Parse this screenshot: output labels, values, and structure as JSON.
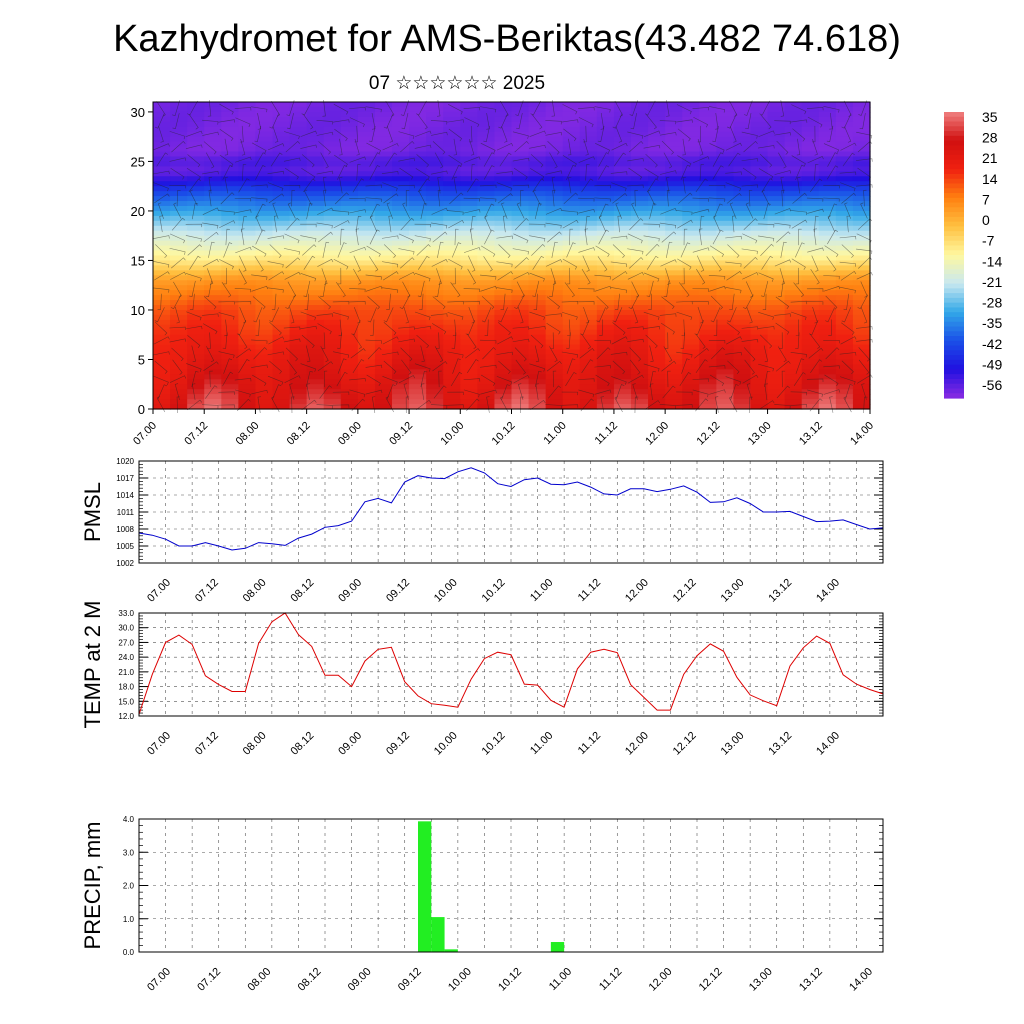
{
  "header": {
    "title": "Kazhydromet for AMS-Beriktas(43.482 74.618)",
    "subtitle": "07 ☆☆☆☆☆☆ 2025"
  },
  "time_labels": [
    "07.00",
    "07.12",
    "08.00",
    "08.12",
    "09.00",
    "09.12",
    "10.00",
    "10.12",
    "11.00",
    "11.12",
    "12.00",
    "12.12",
    "13.00",
    "13.12",
    "14.00"
  ],
  "chart_data": [
    {
      "type": "heatmap",
      "title": "",
      "y_ticks": [
        0,
        5,
        10,
        15,
        20,
        25,
        30
      ],
      "ylim": [
        0,
        31
      ],
      "x_labels": [
        "07.00",
        "07.12",
        "08.00",
        "08.12",
        "09.00",
        "09.12",
        "10.00",
        "10.12",
        "11.00",
        "11.12",
        "12.00",
        "12.12",
        "13.00",
        "13.12",
        "14.00"
      ],
      "overlay": "wind barbs",
      "colorbar": {
        "labels": [
          "35",
          "28",
          "21",
          "14",
          "7",
          "0",
          "-7",
          "-14",
          "-21",
          "-28",
          "-35",
          "-42",
          "-49",
          "-56"
        ],
        "range": [
          -60,
          38
        ],
        "colors": [
          "#8a2be2",
          "#2010e0",
          "#1a50e8",
          "#32a8e8",
          "#c8e8f0",
          "#fff8a0",
          "#ffc040",
          "#ff8010",
          "#f02010",
          "#d01010",
          "#f08080"
        ]
      },
      "temperature_profile": {
        "heights": [
          0,
          5,
          10,
          13,
          15,
          16.5,
          18,
          20,
          22,
          23,
          24,
          25,
          26,
          28,
          31
        ],
        "values": [
          30,
          22,
          14,
          5,
          -8,
          -15,
          -22,
          -32,
          -42,
          -50,
          -56,
          -54,
          -58,
          -58,
          -58
        ]
      }
    },
    {
      "type": "line",
      "ylabel": "PMSL",
      "ylim": [
        1002,
        1020
      ],
      "y_ticks": [
        "1020",
        "1017",
        "1014",
        "1011",
        "1008",
        "1005",
        "1002"
      ],
      "x_labels": [
        "07.00",
        "07.12",
        "08.00",
        "08.12",
        "09.00",
        "09.12",
        "10.00",
        "10.12",
        "11.00",
        "11.12",
        "12.00",
        "12.12",
        "13.00",
        "13.12",
        "14.00"
      ],
      "color": "#0000cc",
      "x": [
        0,
        3,
        6,
        9,
        12,
        15,
        18,
        21,
        24,
        27,
        30,
        33,
        36,
        39,
        42,
        45,
        48,
        51,
        54,
        57,
        60,
        63,
        66,
        69,
        72,
        75,
        78,
        81,
        84,
        87,
        90,
        93,
        96,
        99,
        102,
        105,
        108,
        111,
        114,
        117,
        120,
        123,
        126,
        129,
        132,
        135,
        138,
        141,
        144,
        147,
        150,
        153,
        156,
        159,
        162,
        165,
        168
      ],
      "values": [
        1007.3,
        1006.9,
        1006.2,
        1005.0,
        1005.0,
        1005.6,
        1005.0,
        1004.3,
        1004.6,
        1005.6,
        1005.4,
        1005.1,
        1006.4,
        1007.1,
        1008.3,
        1008.6,
        1009.4,
        1012.8,
        1013.4,
        1012.6,
        1016.3,
        1017.4,
        1017.0,
        1016.9,
        1018.1,
        1018.8,
        1017.9,
        1016.0,
        1015.5,
        1016.7,
        1017.0,
        1015.9,
        1015.8,
        1016.3,
        1015.4,
        1014.2,
        1014.0,
        1015.1,
        1015.1,
        1014.6,
        1015.0,
        1015.6,
        1014.5,
        1012.7,
        1012.8,
        1013.5,
        1012.5,
        1011.0,
        1011.0,
        1011.1,
        1010.2,
        1009.3,
        1009.4,
        1009.6,
        1008.8,
        1008.0,
        1008.2
      ]
    },
    {
      "type": "line",
      "ylabel": "TEMP at 2 M",
      "ylim": [
        12,
        33
      ],
      "y_ticks": [
        "33.0",
        "30.0",
        "27.0",
        "24.0",
        "21.0",
        "18.0",
        "15.0",
        "12.0"
      ],
      "x_labels": [
        "07.00",
        "07.12",
        "08.00",
        "08.12",
        "09.00",
        "09.12",
        "10.00",
        "10.12",
        "11.00",
        "11.12",
        "12.00",
        "12.12",
        "13.00",
        "13.12",
        "14.00"
      ],
      "color": "#dd0000",
      "x": [
        0,
        3,
        6,
        9,
        12,
        15,
        18,
        21,
        24,
        27,
        30,
        33,
        36,
        39,
        42,
        45,
        48,
        51,
        54,
        57,
        60,
        63,
        66,
        69,
        72,
        75,
        78,
        81,
        84,
        87,
        90,
        93,
        96,
        99,
        102,
        105,
        108,
        111,
        114,
        117,
        120,
        123,
        126,
        129,
        132,
        135,
        138,
        141,
        144,
        147,
        150,
        153,
        156,
        159,
        162,
        165,
        168
      ],
      "values": [
        12.3,
        20.5,
        27.0,
        28.5,
        26.6,
        20.2,
        18.4,
        17.0,
        17.0,
        26.8,
        31.2,
        33.0,
        28.6,
        26.2,
        20.3,
        20.3,
        18.0,
        23.2,
        25.6,
        26.0,
        19.0,
        16.1,
        14.5,
        14.2,
        13.8,
        19.5,
        23.7,
        25.0,
        24.5,
        18.5,
        18.3,
        15.2,
        13.8,
        21.6,
        25.0,
        25.6,
        24.9,
        18.4,
        15.8,
        13.2,
        13.2,
        20.5,
        24.3,
        26.7,
        25.2,
        19.9,
        16.3,
        15.1,
        14.1,
        22.2,
        25.9,
        28.3,
        26.8,
        20.4,
        18.5,
        17.4,
        16.5
      ]
    },
    {
      "type": "bar",
      "ylabel": "PRECIP, mm",
      "ylim": [
        0,
        4
      ],
      "y_ticks": [
        "4.0",
        "3.0",
        "2.0",
        "1.0",
        "0.0"
      ],
      "x_labels": [
        "07.00",
        "07.12",
        "08.00",
        "08.12",
        "09.00",
        "09.12",
        "10.00",
        "10.12",
        "11.00",
        "11.12",
        "12.00",
        "12.12",
        "13.00",
        "13.12",
        "14.00"
      ],
      "color": "#22ee22",
      "x": [
        63,
        66,
        69,
        93
      ],
      "values": [
        3.93,
        1.05,
        0.08,
        0.3
      ]
    }
  ]
}
